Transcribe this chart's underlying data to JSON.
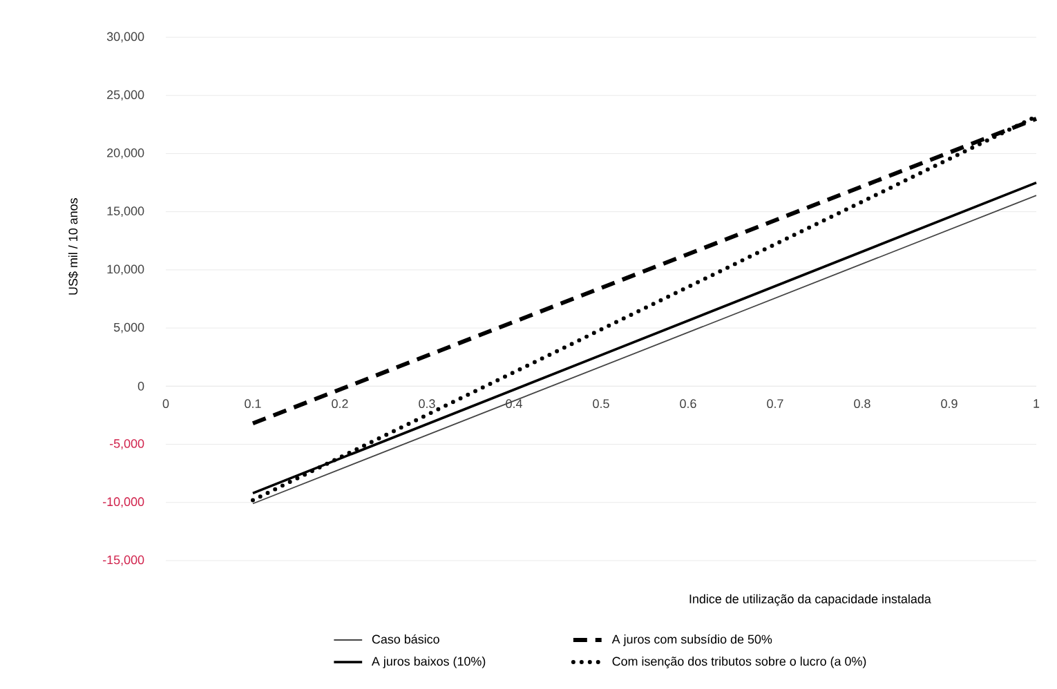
{
  "chart_data": {
    "type": "line",
    "xlabel": "Indice de utilização da capacidade instalada",
    "ylabel": "US$  mil / 10 anos",
    "x": [
      0.1,
      1
    ],
    "series": [
      {
        "name": "Caso básico",
        "color": "#444444",
        "line_style": "solid",
        "values": [
          -10100,
          16400
        ]
      },
      {
        "name": "A juros baixos (10%)",
        "color": "#000000",
        "line_style": "solid",
        "values": [
          -9200,
          17500
        ]
      },
      {
        "name": "A juros com subsídio de 50%",
        "color": "#000000",
        "line_style": "dashed",
        "values": [
          -3200,
          23000
        ]
      },
      {
        "name": "Com isenção dos tributos sobre o lucro (a 0%)",
        "color": "#000000",
        "line_style": "dotted",
        "values": [
          -9800,
          23200
        ]
      }
    ],
    "xlim": [
      0,
      1
    ],
    "ylim": [
      -15000,
      30000
    ],
    "xticks": [
      0,
      0.1,
      0.2,
      0.3,
      0.4,
      0.5,
      0.6,
      0.7,
      0.8,
      0.9,
      1
    ],
    "yticks": [
      {
        "value": -15000,
        "label": "-15,000"
      },
      {
        "value": -10000,
        "label": "-10,000"
      },
      {
        "value": -5000,
        "label": "-5,000"
      },
      0,
      {
        "value": 5000,
        "label": "5,000"
      },
      {
        "value": 10000,
        "label": "10,000"
      },
      {
        "value": 15000,
        "label": "15,000"
      },
      {
        "value": 20000,
        "label": "20,000"
      },
      {
        "value": 25000,
        "label": "25,000"
      },
      {
        "value": 30000,
        "label": "30,000"
      }
    ],
    "grid": "y",
    "legend": "bottom",
    "marker": "none"
  }
}
